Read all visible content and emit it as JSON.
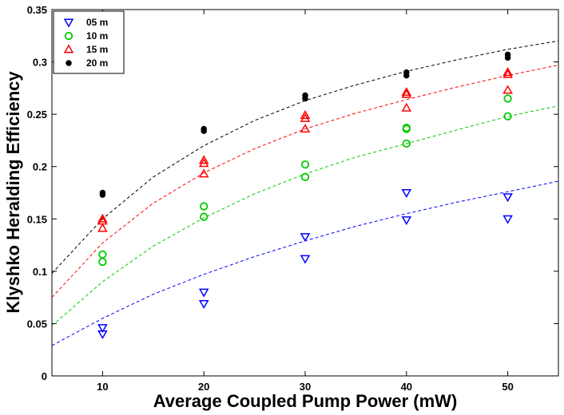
{
  "chart_data": {
    "type": "scatter",
    "title": "",
    "xlabel": "Average Coupled Pump Power (mW)",
    "ylabel": "Klyshko Heralding Efficiency",
    "xlim": [
      5,
      55
    ],
    "ylim": [
      0,
      0.35
    ],
    "xticks": [
      10,
      20,
      30,
      40,
      50
    ],
    "xtick_labels": [
      "10",
      "20",
      "30",
      "40",
      "50"
    ],
    "yticks": [
      0,
      0.05,
      0.1,
      0.15,
      0.2,
      0.25,
      0.3,
      0.35
    ],
    "ytick_labels": [
      "0",
      "0.05",
      "0.1",
      "0.15",
      "0.2",
      "0.25",
      "0.3",
      "0.35"
    ],
    "grid": false,
    "legend_position": "top-left",
    "series": [
      {
        "name": "05 m",
        "marker": "triangle-down",
        "color": "#0000ff",
        "points": [
          [
            10,
            0.046
          ],
          [
            10,
            0.04
          ],
          [
            20,
            0.08
          ],
          [
            20,
            0.069
          ],
          [
            30,
            0.133
          ],
          [
            30,
            0.112
          ],
          [
            40,
            0.175
          ],
          [
            40,
            0.149
          ],
          [
            50,
            0.171
          ],
          [
            50,
            0.15
          ]
        ],
        "fit": [
          [
            5,
            0.029
          ],
          [
            10,
            0.055
          ],
          [
            15,
            0.078
          ],
          [
            20,
            0.097
          ],
          [
            25,
            0.114
          ],
          [
            30,
            0.129
          ],
          [
            35,
            0.143
          ],
          [
            40,
            0.155
          ],
          [
            45,
            0.166
          ],
          [
            50,
            0.176
          ],
          [
            55,
            0.186
          ]
        ]
      },
      {
        "name": "10 m",
        "marker": "circle",
        "color": "#00cc00",
        "points": [
          [
            10,
            0.116
          ],
          [
            10,
            0.109
          ],
          [
            20,
            0.162
          ],
          [
            20,
            0.152
          ],
          [
            30,
            0.202
          ],
          [
            30,
            0.19
          ],
          [
            40,
            0.237
          ],
          [
            40,
            0.236
          ],
          [
            40,
            0.222
          ],
          [
            50,
            0.265
          ],
          [
            50,
            0.248
          ]
        ],
        "fit": [
          [
            5,
            0.048
          ],
          [
            10,
            0.09
          ],
          [
            15,
            0.124
          ],
          [
            20,
            0.151
          ],
          [
            25,
            0.174
          ],
          [
            30,
            0.193
          ],
          [
            35,
            0.209
          ],
          [
            40,
            0.222
          ],
          [
            45,
            0.235
          ],
          [
            50,
            0.248
          ],
          [
            55,
            0.258
          ]
        ]
      },
      {
        "name": "15 m",
        "marker": "triangle-up",
        "color": "#ff0000",
        "points": [
          [
            10,
            0.15
          ],
          [
            10,
            0.148
          ],
          [
            10,
            0.141
          ],
          [
            20,
            0.206
          ],
          [
            20,
            0.203
          ],
          [
            20,
            0.193
          ],
          [
            30,
            0.249
          ],
          [
            30,
            0.246
          ],
          [
            30,
            0.236
          ],
          [
            40,
            0.271
          ],
          [
            40,
            0.269
          ],
          [
            40,
            0.256
          ],
          [
            50,
            0.29
          ],
          [
            50,
            0.288
          ],
          [
            50,
            0.273
          ]
        ],
        "fit": [
          [
            5,
            0.075
          ],
          [
            10,
            0.127
          ],
          [
            15,
            0.165
          ],
          [
            20,
            0.194
          ],
          [
            25,
            0.217
          ],
          [
            30,
            0.236
          ],
          [
            35,
            0.251
          ],
          [
            40,
            0.264
          ],
          [
            45,
            0.276
          ],
          [
            50,
            0.287
          ],
          [
            55,
            0.297
          ]
        ]
      },
      {
        "name": "20 m",
        "marker": "asterisk",
        "color": "#000000",
        "points": [
          [
            10,
            0.175
          ],
          [
            10,
            0.173
          ],
          [
            20,
            0.236
          ],
          [
            20,
            0.234
          ],
          [
            30,
            0.268
          ],
          [
            30,
            0.265
          ],
          [
            40,
            0.29
          ],
          [
            40,
            0.287
          ],
          [
            50,
            0.307
          ],
          [
            50,
            0.304
          ]
        ],
        "fit": [
          [
            5,
            0.098
          ],
          [
            10,
            0.15
          ],
          [
            15,
            0.19
          ],
          [
            20,
            0.22
          ],
          [
            25,
            0.244
          ],
          [
            30,
            0.263
          ],
          [
            35,
            0.278
          ],
          [
            40,
            0.291
          ],
          [
            45,
            0.302
          ],
          [
            50,
            0.312
          ],
          [
            55,
            0.32
          ]
        ]
      }
    ]
  }
}
